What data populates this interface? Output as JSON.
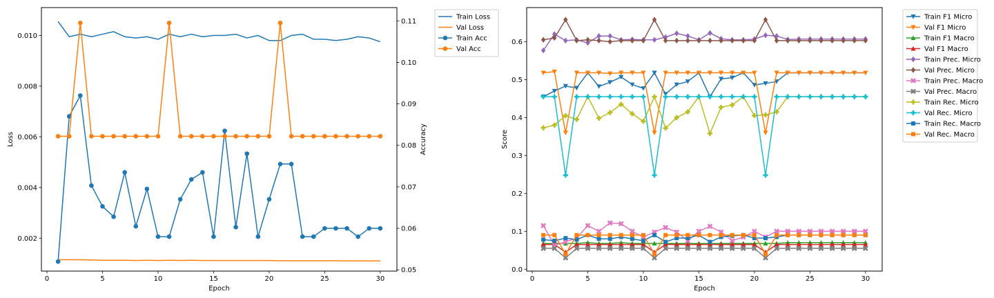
{
  "chart_data": [
    {
      "type": "line",
      "xlabel": "Epoch",
      "ylabel": "Loss",
      "y2label": "Accuracy",
      "xlim": [
        -0.5,
        31.5
      ],
      "ylim": [
        0.0007,
        0.0111
      ],
      "y2lim": [
        0.0497,
        0.1132
      ],
      "xticks": [
        "0",
        "5",
        "10",
        "15",
        "20",
        "25",
        "30"
      ],
      "yticks": [
        "0.002",
        "0.004",
        "0.006",
        "0.008",
        "0.010"
      ],
      "y2ticks": [
        "0.05",
        "0.06",
        "0.07",
        "0.08",
        "0.09",
        "0.10",
        "0.11"
      ],
      "grid": false,
      "legend_position": "outside-top-right",
      "x": [
        1,
        2,
        3,
        4,
        5,
        6,
        7,
        8,
        9,
        10,
        11,
        12,
        13,
        14,
        15,
        16,
        17,
        18,
        19,
        20,
        21,
        22,
        23,
        24,
        25,
        26,
        27,
        28,
        29,
        30
      ],
      "series": [
        {
          "name": "Train Loss",
          "axis": "left",
          "marker": "none",
          "color": "#1f77b4",
          "values": [
            0.01055,
            0.00995,
            0.01005,
            0.00995,
            0.01005,
            0.01015,
            0.00995,
            0.0099,
            0.00995,
            0.00985,
            0.01005,
            0.00995,
            0.01005,
            0.00995,
            0.01,
            0.01,
            0.01005,
            0.0099,
            0.01,
            0.0098,
            0.0098,
            0.01,
            0.01005,
            0.00985,
            0.00985,
            0.0098,
            0.00985,
            0.00995,
            0.0099,
            0.00975
          ]
        },
        {
          "name": "Val Loss",
          "axis": "left",
          "marker": "none",
          "color": "#ff7f0e",
          "values": [
            0.00115,
            0.00115,
            0.00115,
            0.00114,
            0.00113,
            0.00113,
            0.00113,
            0.00112,
            0.00113,
            0.00112,
            0.00113,
            0.00112,
            0.00113,
            0.00112,
            0.00112,
            0.00112,
            0.00112,
            0.00112,
            0.00112,
            0.00112,
            0.00111,
            0.00111,
            0.00111,
            0.00111,
            0.00111,
            0.00111,
            0.0011,
            0.0011,
            0.0011,
            0.0011
          ]
        },
        {
          "name": "Train Acc",
          "axis": "right",
          "marker": "circle",
          "color": "#1f77b4",
          "values": [
            0.052,
            0.087,
            0.092,
            0.0703,
            0.0653,
            0.0628,
            0.0735,
            0.0605,
            0.0695,
            0.058,
            0.058,
            0.067,
            0.0718,
            0.0735,
            0.058,
            0.0835,
            0.0603,
            0.078,
            0.058,
            0.067,
            0.0755,
            0.0755,
            0.058,
            0.058,
            0.06,
            0.06,
            0.06,
            0.058,
            0.06,
            0.06
          ]
        },
        {
          "name": "Val Acc",
          "axis": "right",
          "marker": "circle",
          "color": "#ff7f0e",
          "values": [
            0.0822,
            0.0822,
            0.1095,
            0.0822,
            0.0822,
            0.0822,
            0.0822,
            0.0822,
            0.0822,
            0.0822,
            0.1095,
            0.0822,
            0.0822,
            0.0822,
            0.0822,
            0.0822,
            0.0822,
            0.0822,
            0.0822,
            0.0822,
            0.1095,
            0.0822,
            0.0822,
            0.0822,
            0.0822,
            0.0822,
            0.0822,
            0.0822,
            0.0822,
            0.0822
          ]
        }
      ]
    },
    {
      "type": "line",
      "xlabel": "Epoch",
      "ylabel": "Score",
      "xlim": [
        -0.5,
        31.5
      ],
      "ylim": [
        -0.005,
        0.69
      ],
      "xticks": [
        "0",
        "5",
        "10",
        "15",
        "20",
        "25",
        "30"
      ],
      "yticks": [
        "0.0",
        "0.1",
        "0.2",
        "0.3",
        "0.4",
        "0.5",
        "0.6"
      ],
      "grid": false,
      "legend_position": "outside-top-right",
      "x": [
        1,
        2,
        3,
        4,
        5,
        6,
        7,
        8,
        9,
        10,
        11,
        12,
        13,
        14,
        15,
        16,
        17,
        18,
        19,
        20,
        21,
        22,
        23,
        24,
        25,
        26,
        27,
        28,
        29,
        30
      ],
      "series": [
        {
          "name": "Train F1 Micro",
          "marker": "triangle-down",
          "color": "#1f77b4",
          "values": [
            0.455,
            0.47,
            0.483,
            0.478,
            0.518,
            0.482,
            0.493,
            0.507,
            0.487,
            0.477,
            0.518,
            0.462,
            0.487,
            0.495,
            0.518,
            0.455,
            0.502,
            0.505,
            0.518,
            0.486,
            0.49,
            0.495,
            0.518,
            0.518,
            0.518,
            0.518,
            0.518,
            0.518,
            0.518,
            0.518
          ]
        },
        {
          "name": "Val F1 Micro",
          "marker": "triangle-down",
          "color": "#ff7f0e",
          "values": [
            0.518,
            0.521,
            0.36,
            0.518,
            0.518,
            0.518,
            0.516,
            0.518,
            0.518,
            0.518,
            0.36,
            0.518,
            0.518,
            0.518,
            0.518,
            0.518,
            0.518,
            0.518,
            0.518,
            0.518,
            0.36,
            0.518,
            0.518,
            0.518,
            0.518,
            0.518,
            0.518,
            0.518,
            0.518,
            0.518
          ]
        },
        {
          "name": "Train F1 Macro",
          "marker": "triangle-up",
          "color": "#2ca02c",
          "values": [
            0.068,
            0.068,
            0.068,
            0.068,
            0.07,
            0.068,
            0.068,
            0.07,
            0.068,
            0.068,
            0.068,
            0.068,
            0.068,
            0.068,
            0.068,
            0.068,
            0.068,
            0.068,
            0.068,
            0.068,
            0.068,
            0.068,
            0.07,
            0.07,
            0.07,
            0.07,
            0.07,
            0.07,
            0.07,
            0.07
          ]
        },
        {
          "name": "Val F1 Macro",
          "marker": "triangle-up",
          "color": "#d62728",
          "values": [
            0.065,
            0.065,
            0.045,
            0.065,
            0.065,
            0.065,
            0.065,
            0.065,
            0.065,
            0.065,
            0.045,
            0.065,
            0.065,
            0.065,
            0.065,
            0.065,
            0.065,
            0.065,
            0.065,
            0.065,
            0.045,
            0.065,
            0.065,
            0.065,
            0.065,
            0.065,
            0.065,
            0.065,
            0.065,
            0.065
          ]
        },
        {
          "name": "Train Prec. Micro",
          "marker": "diamond",
          "color": "#9467bd",
          "values": [
            0.577,
            0.62,
            0.603,
            0.605,
            0.597,
            0.615,
            0.615,
            0.605,
            0.606,
            0.605,
            0.605,
            0.612,
            0.622,
            0.615,
            0.605,
            0.623,
            0.608,
            0.605,
            0.605,
            0.607,
            0.617,
            0.615,
            0.606,
            0.607,
            0.607,
            0.607,
            0.607,
            0.607,
            0.607,
            0.607
          ]
        },
        {
          "name": "Val Prec. Micro",
          "marker": "diamond",
          "color": "#8c564b",
          "values": [
            0.605,
            0.61,
            0.658,
            0.603,
            0.605,
            0.603,
            0.6,
            0.603,
            0.603,
            0.603,
            0.658,
            0.603,
            0.603,
            0.603,
            0.603,
            0.603,
            0.603,
            0.603,
            0.603,
            0.603,
            0.658,
            0.603,
            0.603,
            0.603,
            0.603,
            0.603,
            0.603,
            0.603,
            0.603,
            0.603
          ]
        },
        {
          "name": "Train Prec. Macro",
          "marker": "x-filled",
          "color": "#e377c2",
          "values": [
            0.115,
            0.063,
            0.072,
            0.082,
            0.115,
            0.1,
            0.122,
            0.12,
            0.1,
            0.085,
            0.098,
            0.11,
            0.098,
            0.075,
            0.1,
            0.113,
            0.098,
            0.075,
            0.085,
            0.1,
            0.085,
            0.1,
            0.1,
            0.1,
            0.1,
            0.1,
            0.1,
            0.1,
            0.1,
            0.1
          ]
        },
        {
          "name": "Val Prec. Macro",
          "marker": "x-filled",
          "color": "#7f7f7f",
          "values": [
            0.055,
            0.055,
            0.03,
            0.055,
            0.055,
            0.055,
            0.055,
            0.055,
            0.055,
            0.055,
            0.03,
            0.055,
            0.055,
            0.055,
            0.055,
            0.055,
            0.055,
            0.055,
            0.055,
            0.055,
            0.03,
            0.055,
            0.055,
            0.055,
            0.055,
            0.055,
            0.055,
            0.055,
            0.055,
            0.055
          ]
        },
        {
          "name": "Train Rec. Micro",
          "marker": "plus-filled",
          "color": "#bcbd22",
          "values": [
            0.373,
            0.38,
            0.405,
            0.395,
            0.455,
            0.398,
            0.413,
            0.435,
            0.41,
            0.39,
            0.455,
            0.372,
            0.4,
            0.415,
            0.455,
            0.358,
            0.427,
            0.433,
            0.455,
            0.405,
            0.407,
            0.415,
            0.455,
            0.455,
            0.455,
            0.455,
            0.455,
            0.455,
            0.455,
            0.455
          ]
        },
        {
          "name": "Val Rec. Micro",
          "marker": "plus-filled",
          "color": "#17becf",
          "values": [
            0.455,
            0.455,
            0.248,
            0.455,
            0.455,
            0.455,
            0.455,
            0.455,
            0.455,
            0.455,
            0.248,
            0.455,
            0.455,
            0.455,
            0.455,
            0.455,
            0.455,
            0.455,
            0.455,
            0.455,
            0.248,
            0.455,
            0.455,
            0.455,
            0.455,
            0.455,
            0.455,
            0.455,
            0.455,
            0.455
          ]
        },
        {
          "name": "Train Rec. Macro",
          "marker": "square",
          "color": "#1f77b4",
          "values": [
            0.078,
            0.075,
            0.082,
            0.078,
            0.09,
            0.08,
            0.08,
            0.085,
            0.08,
            0.075,
            0.09,
            0.072,
            0.082,
            0.082,
            0.09,
            0.072,
            0.085,
            0.088,
            0.09,
            0.082,
            0.082,
            0.085,
            0.09,
            0.09,
            0.09,
            0.09,
            0.09,
            0.09,
            0.09,
            0.09
          ]
        },
        {
          "name": "Val Rec. Macro",
          "marker": "square",
          "color": "#ff7f0e",
          "values": [
            0.09,
            0.09,
            0.04,
            0.09,
            0.09,
            0.09,
            0.09,
            0.09,
            0.09,
            0.09,
            0.04,
            0.09,
            0.09,
            0.09,
            0.09,
            0.09,
            0.09,
            0.09,
            0.09,
            0.09,
            0.04,
            0.09,
            0.09,
            0.09,
            0.09,
            0.09,
            0.09,
            0.09,
            0.09,
            0.09
          ]
        }
      ]
    }
  ]
}
